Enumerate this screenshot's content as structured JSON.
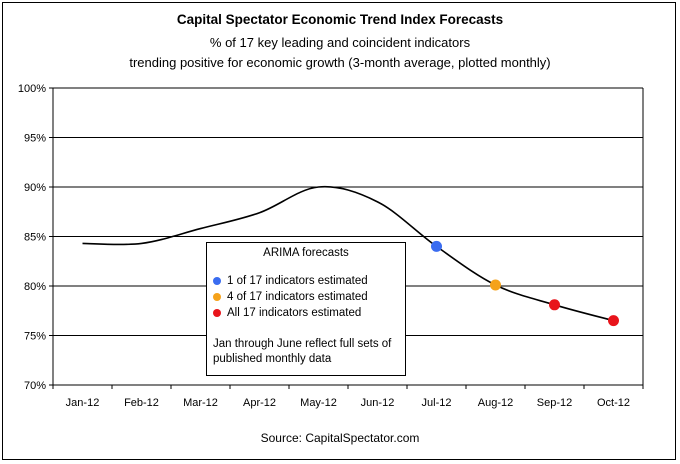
{
  "title": "Capital Spectator Economic Trend Index Forecasts",
  "subtitle_line1": "% of 17 key leading and coincident indicators",
  "subtitle_line2": "trending positive for economic growth (3-month average, plotted monthly)",
  "source": "Source: CapitalSpectator.com",
  "legend": {
    "title": "ARIMA forecasts",
    "items": [
      {
        "label": "1 of 17 indicators estimated",
        "color": "#3a6cf0"
      },
      {
        "label": "4 of 17 indicators estimated",
        "color": "#f5a21b"
      },
      {
        "label": "All 17 indicators estimated",
        "color": "#e8141b"
      }
    ],
    "note": "Jan through June reflect full sets of published monthly data"
  },
  "chart_data": {
    "type": "line",
    "categories": [
      "Jan-12",
      "Feb-12",
      "Mar-12",
      "Apr-12",
      "May-12",
      "Jun-12",
      "Jul-12",
      "Aug-12",
      "Sep-12",
      "Oct-12"
    ],
    "y_tick_labels": [
      "70%",
      "75%",
      "80%",
      "85%",
      "90%",
      "95%",
      "100%"
    ],
    "ylim": [
      70,
      100
    ],
    "series": [
      {
        "values": [
          84.3,
          84.3,
          85.8,
          87.4,
          90.0,
          88.5,
          84.0,
          80.1,
          78.1,
          76.5
        ],
        "color": "#000000"
      }
    ],
    "markers": [
      {
        "category": "Jul-12",
        "value": 84.0,
        "color": "#3a6cf0"
      },
      {
        "category": "Aug-12",
        "value": 80.1,
        "color": "#f5a21b"
      },
      {
        "category": "Sep-12",
        "value": 78.1,
        "color": "#e8141b"
      },
      {
        "category": "Oct-12",
        "value": 76.5,
        "color": "#e8141b"
      }
    ],
    "grid": true
  }
}
